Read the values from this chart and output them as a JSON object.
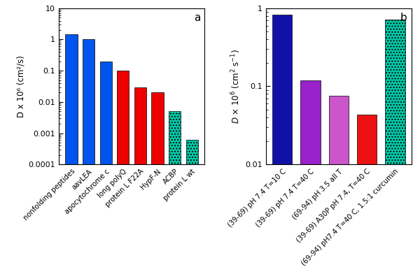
{
  "panel_a": {
    "categories": [
      "nonfolding peptides",
      "aavLEA",
      "apocytochrome c",
      "long polyQ",
      "protein L F22A",
      "HypF-N",
      "ACBP",
      "protein L wt"
    ],
    "values": [
      1.5,
      1.0,
      0.2,
      0.1,
      0.03,
      0.02,
      0.005,
      0.0006
    ],
    "colors": [
      "#0055ee",
      "#0055ee",
      "#0055ee",
      "#ee0000",
      "#ee0000",
      "#ee0000",
      "#00ccaa",
      "#00ccaa"
    ],
    "hatch_flags": [
      false,
      false,
      false,
      false,
      false,
      false,
      true,
      true
    ],
    "ylabel": "D x 10⁶ (cm²/s)",
    "ylim": [
      0.0001,
      10
    ],
    "yticks": [
      0.0001,
      0.001,
      0.01,
      0.1,
      1,
      10
    ],
    "yticklabels": [
      "0.0001",
      "0.001",
      "0.01",
      "0.1",
      "1",
      "10"
    ],
    "label": "a"
  },
  "panel_b": {
    "categories": [
      "(39-69) pH 7.4 T=10 C",
      "(39-69) pH 7.4 T=40 C",
      "(69-94) pH 3.5 all T",
      "(39-69) A30P pH 7.4, T=40 C",
      "(69-94) pH7.4 T=40 C, 1.5:1 curcumin"
    ],
    "values": [
      0.82,
      0.12,
      0.075,
      0.043,
      0.72
    ],
    "colors": [
      "#1111aa",
      "#9922cc",
      "#cc55cc",
      "#ee1111",
      "#00ccaa"
    ],
    "hatch_flags": [
      false,
      false,
      false,
      false,
      true
    ],
    "ylabel": "$D$ × 10$^6$ (cm$^2$ s$^{-1}$)",
    "ylim": [
      0.01,
      1
    ],
    "yticks": [
      0.01,
      0.1,
      1
    ],
    "yticklabels": [
      "0.01",
      "0.1",
      "1"
    ],
    "label": "b"
  },
  "hatch": "....",
  "bar_edge_color": "black",
  "bar_linewidth": 0.5,
  "bar_width": 0.7
}
